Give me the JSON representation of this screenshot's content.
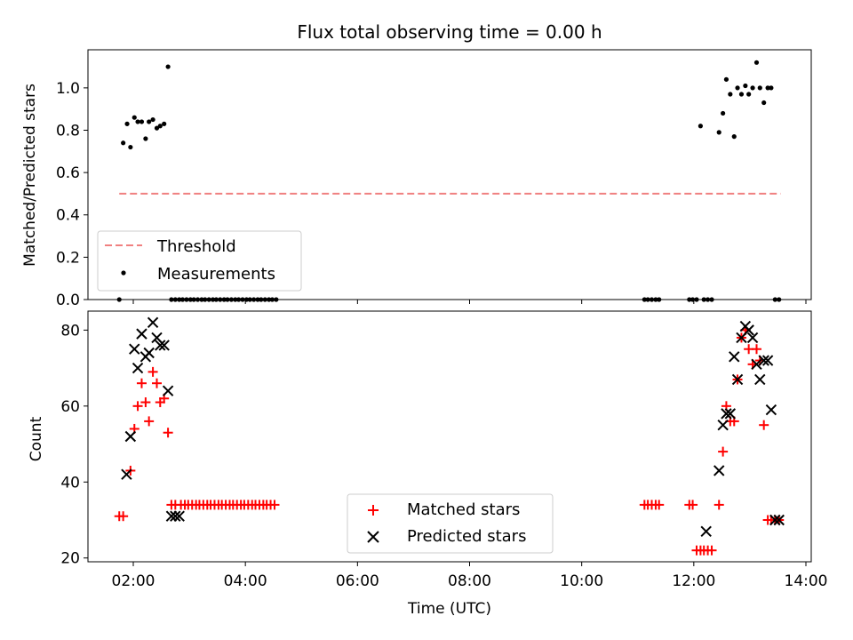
{
  "chart_data": [
    {
      "type": "scatter",
      "title": "Flux total observing time = 0.00 h",
      "ylabel": "Matched/Predicted stars",
      "xlabel": "",
      "xlim": [
        1.8,
        14.1
      ],
      "ylim": [
        0,
        1.18
      ],
      "yticks": [
        0.0,
        0.2,
        0.4,
        0.6,
        0.8,
        1.0
      ],
      "ytick_labels": [
        "0.0",
        "0.2",
        "0.4",
        "0.6",
        "0.8",
        "1.0"
      ],
      "grid": false,
      "legend_placement": "lower-left",
      "series": [
        {
          "name": "Threshold",
          "kind": "dashed-line",
          "color": "#f08080",
          "x": [
            1.75,
            13.55
          ],
          "y": [
            0.5,
            0.5
          ]
        },
        {
          "name": "Measurements",
          "kind": "dot",
          "color": "#000000",
          "x": [
            1.75,
            1.82,
            1.89,
            1.95,
            2.02,
            2.08,
            2.15,
            2.22,
            2.28,
            2.35,
            2.42,
            2.48,
            2.55,
            2.62,
            2.68,
            2.75,
            2.82,
            2.88,
            2.95,
            3.02,
            3.08,
            3.15,
            3.22,
            3.28,
            3.35,
            3.42,
            3.48,
            3.55,
            3.62,
            3.68,
            3.75,
            3.82,
            3.88,
            3.95,
            4.02,
            4.08,
            4.15,
            4.22,
            4.28,
            4.35,
            4.42,
            4.48,
            4.55,
            11.12,
            11.18,
            11.25,
            11.32,
            11.38,
            11.92,
            11.98,
            12.05,
            12.12,
            12.18,
            12.25,
            12.32,
            12.45,
            12.52,
            12.58,
            12.65,
            12.72,
            12.78,
            12.85,
            12.92,
            12.98,
            13.05,
            13.12,
            13.18,
            13.25,
            13.32,
            13.38,
            13.45,
            13.52
          ],
          "y": [
            0.0,
            0.74,
            0.83,
            0.72,
            0.86,
            0.84,
            0.84,
            0.76,
            0.84,
            0.85,
            0.81,
            0.82,
            0.83,
            1.1,
            0.0,
            0.0,
            0.0,
            0.0,
            0.0,
            0.0,
            0.0,
            0.0,
            0.0,
            0.0,
            0.0,
            0.0,
            0.0,
            0.0,
            0.0,
            0.0,
            0.0,
            0.0,
            0.0,
            0.0,
            0.0,
            0.0,
            0.0,
            0.0,
            0.0,
            0.0,
            0.0,
            0.0,
            0.0,
            0.0,
            0.0,
            0.0,
            0.0,
            0.0,
            0.0,
            0.0,
            0.0,
            0.82,
            0.0,
            0.0,
            0.0,
            0.79,
            0.88,
            1.04,
            0.97,
            0.77,
            1.0,
            0.97,
            1.01,
            0.97,
            1.0,
            1.12,
            1.0,
            0.93,
            1.0,
            1.0,
            0.0,
            0.0
          ]
        }
      ]
    },
    {
      "type": "scatter",
      "title": "",
      "ylabel": "Count",
      "xlabel": "Time (UTC)",
      "xlim": [
        1.8,
        14.1
      ],
      "ylim": [
        19,
        85
      ],
      "xticks": [
        2,
        4,
        6,
        8,
        10,
        12,
        14
      ],
      "xtick_labels": [
        "02:00",
        "04:00",
        "06:00",
        "08:00",
        "10:00",
        "12:00",
        "14:00"
      ],
      "yticks": [
        20,
        40,
        60,
        80
      ],
      "ytick_labels": [
        "20",
        "40",
        "60",
        "80"
      ],
      "grid": false,
      "legend_placement": "lower-center",
      "series": [
        {
          "name": "Matched stars",
          "kind": "plus",
          "color": "#ff0000",
          "x": [
            1.75,
            1.82,
            1.95,
            2.02,
            2.08,
            2.15,
            2.22,
            2.28,
            2.35,
            2.42,
            2.48,
            2.55,
            2.62,
            2.68,
            2.75,
            2.85,
            2.92,
            2.98,
            3.05,
            3.12,
            3.18,
            3.25,
            3.32,
            3.38,
            3.45,
            3.52,
            3.58,
            3.65,
            3.72,
            3.78,
            3.85,
            3.92,
            3.98,
            4.05,
            4.12,
            4.18,
            4.25,
            4.32,
            4.38,
            4.45,
            4.52,
            11.12,
            11.18,
            11.25,
            11.32,
            11.38,
            11.92,
            11.98,
            12.05,
            12.12,
            12.18,
            12.25,
            12.32,
            12.45,
            12.52,
            12.58,
            12.65,
            12.72,
            12.78,
            12.85,
            12.92,
            12.98,
            13.05,
            13.12,
            13.18,
            13.25,
            13.32,
            13.38,
            13.45,
            13.52
          ],
          "y": [
            31,
            31,
            43,
            54,
            60,
            66,
            61,
            56,
            69,
            66,
            61,
            62,
            53,
            34,
            34,
            34,
            34,
            34,
            34,
            34,
            34,
            34,
            34,
            34,
            34,
            34,
            34,
            34,
            34,
            34,
            34,
            34,
            34,
            34,
            34,
            34,
            34,
            34,
            34,
            34,
            34,
            34,
            34,
            34,
            34,
            34,
            34,
            34,
            22,
            22,
            22,
            22,
            22,
            34,
            48,
            60,
            56,
            56,
            67,
            78,
            80,
            75,
            71,
            75,
            72,
            55,
            30,
            30,
            30,
            30
          ],
          "x_note": ""
        },
        {
          "name": "Predicted stars",
          "kind": "cross",
          "color": "#000000",
          "x": [
            1.88,
            1.95,
            2.02,
            2.08,
            2.15,
            2.22,
            2.28,
            2.35,
            2.42,
            2.48,
            2.55,
            2.62,
            2.68,
            2.75,
            2.82,
            12.22,
            12.45,
            12.52,
            12.58,
            12.65,
            12.72,
            12.78,
            12.85,
            12.92,
            12.98,
            13.05,
            13.12,
            13.18,
            13.25,
            13.32,
            13.38,
            13.45,
            13.52
          ],
          "y": [
            42,
            52,
            75,
            70,
            79,
            73,
            74,
            82,
            78,
            76,
            76,
            64,
            31,
            31,
            31,
            27,
            43,
            55,
            58,
            58,
            73,
            67,
            78,
            81,
            80,
            78,
            71,
            67,
            72,
            72,
            59,
            30,
            30
          ]
        }
      ]
    }
  ]
}
